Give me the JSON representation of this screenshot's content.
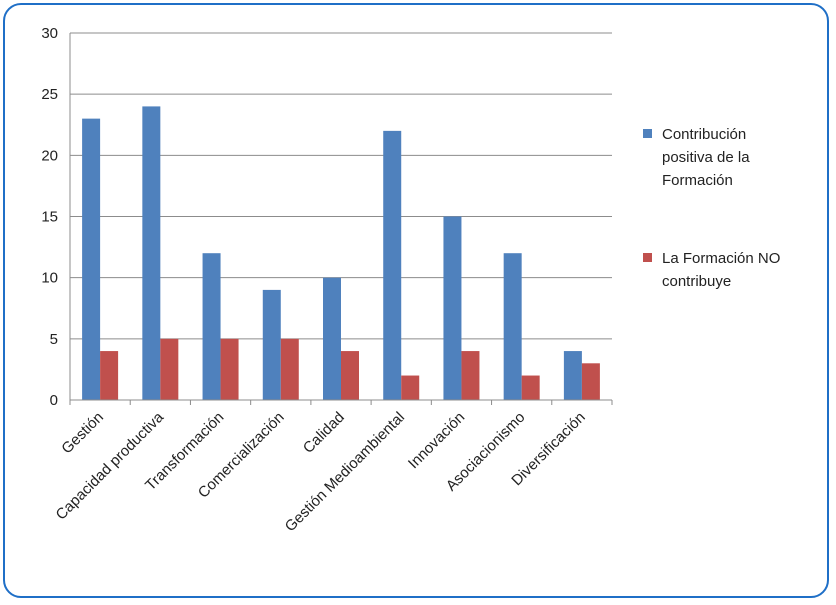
{
  "chart_data": {
    "type": "bar",
    "categories": [
      "Gestión",
      "Capacidad productiva",
      "Transformación",
      "Comercialización",
      "Calidad",
      "Gestión Medioambiental",
      "Innovación",
      "Asociacionismo",
      "Diversificación"
    ],
    "series": [
      {
        "name": "Contribución positiva de la Formación",
        "values": [
          23,
          24,
          12,
          9,
          10,
          22,
          15,
          12,
          4
        ],
        "color": "#4f81bd"
      },
      {
        "name": "La Formación NO contribuye",
        "values": [
          4,
          5,
          5,
          5,
          4,
          2,
          4,
          2,
          3
        ],
        "color": "#c0504d"
      }
    ],
    "y_ticks": [
      "0",
      "5",
      "10",
      "15",
      "20",
      "25",
      "30"
    ],
    "ylim": [
      0,
      30
    ],
    "grid": true,
    "legend_position": "right",
    "legend": {
      "items": [
        {
          "lines": [
            "Contribución",
            "positiva de la",
            "Formación"
          ]
        },
        {
          "lines": [
            "La Formación NO",
            "contribuye"
          ]
        }
      ]
    },
    "border_color": "#1f6fc7"
  }
}
